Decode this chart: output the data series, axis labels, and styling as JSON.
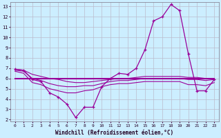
{
  "xlabel": "Windchill (Refroidissement éolien,°C)",
  "x": [
    0,
    1,
    2,
    3,
    4,
    5,
    6,
    7,
    8,
    9,
    10,
    11,
    12,
    13,
    14,
    15,
    16,
    17,
    18,
    19,
    20,
    21,
    22,
    23
  ],
  "main_line": [
    6.9,
    6.8,
    5.9,
    5.7,
    4.6,
    4.2,
    3.5,
    2.2,
    3.2,
    3.2,
    5.2,
    6.0,
    6.5,
    6.4,
    7.0,
    8.8,
    11.6,
    12.0,
    13.2,
    12.6,
    8.4,
    4.8,
    4.8,
    5.9
  ],
  "line_upper": [
    6.9,
    6.8,
    6.4,
    6.2,
    6.0,
    5.9,
    5.7,
    5.6,
    5.6,
    5.7,
    5.8,
    5.9,
    6.0,
    6.0,
    6.1,
    6.2,
    6.2,
    6.2,
    6.2,
    6.2,
    6.1,
    6.1,
    6.0,
    6.0
  ],
  "line_mid": [
    6.8,
    6.7,
    6.0,
    5.8,
    5.5,
    5.3,
    5.2,
    5.2,
    5.3,
    5.3,
    5.5,
    5.7,
    5.8,
    5.8,
    5.9,
    6.0,
    6.0,
    6.0,
    6.0,
    6.0,
    5.9,
    5.9,
    5.8,
    5.9
  ],
  "line_lower": [
    6.7,
    6.5,
    5.6,
    5.4,
    5.0,
    4.8,
    4.6,
    4.6,
    4.8,
    4.9,
    5.2,
    5.4,
    5.5,
    5.5,
    5.6,
    5.7,
    5.7,
    5.7,
    5.7,
    5.7,
    5.4,
    5.4,
    5.3,
    5.6
  ],
  "line_flat": [
    6.0,
    6.0,
    6.0,
    6.0,
    6.0,
    6.0,
    6.0,
    6.0,
    6.0,
    6.0,
    6.0,
    6.0,
    6.0,
    6.0,
    6.0,
    6.0,
    6.0,
    6.0,
    6.0,
    6.0,
    6.0,
    6.0,
    6.0,
    6.0
  ],
  "line_color": "#990099",
  "bg_color": "#cceeff",
  "grid_color": "#bbbbcc",
  "ylim": [
    2,
    13
  ],
  "xlim": [
    0,
    23
  ],
  "yticks": [
    2,
    3,
    4,
    5,
    6,
    7,
    8,
    9,
    10,
    11,
    12,
    13
  ],
  "xticks": [
    0,
    1,
    2,
    3,
    4,
    5,
    6,
    7,
    8,
    9,
    10,
    11,
    12,
    13,
    14,
    15,
    16,
    17,
    18,
    19,
    20,
    21,
    22,
    23
  ]
}
